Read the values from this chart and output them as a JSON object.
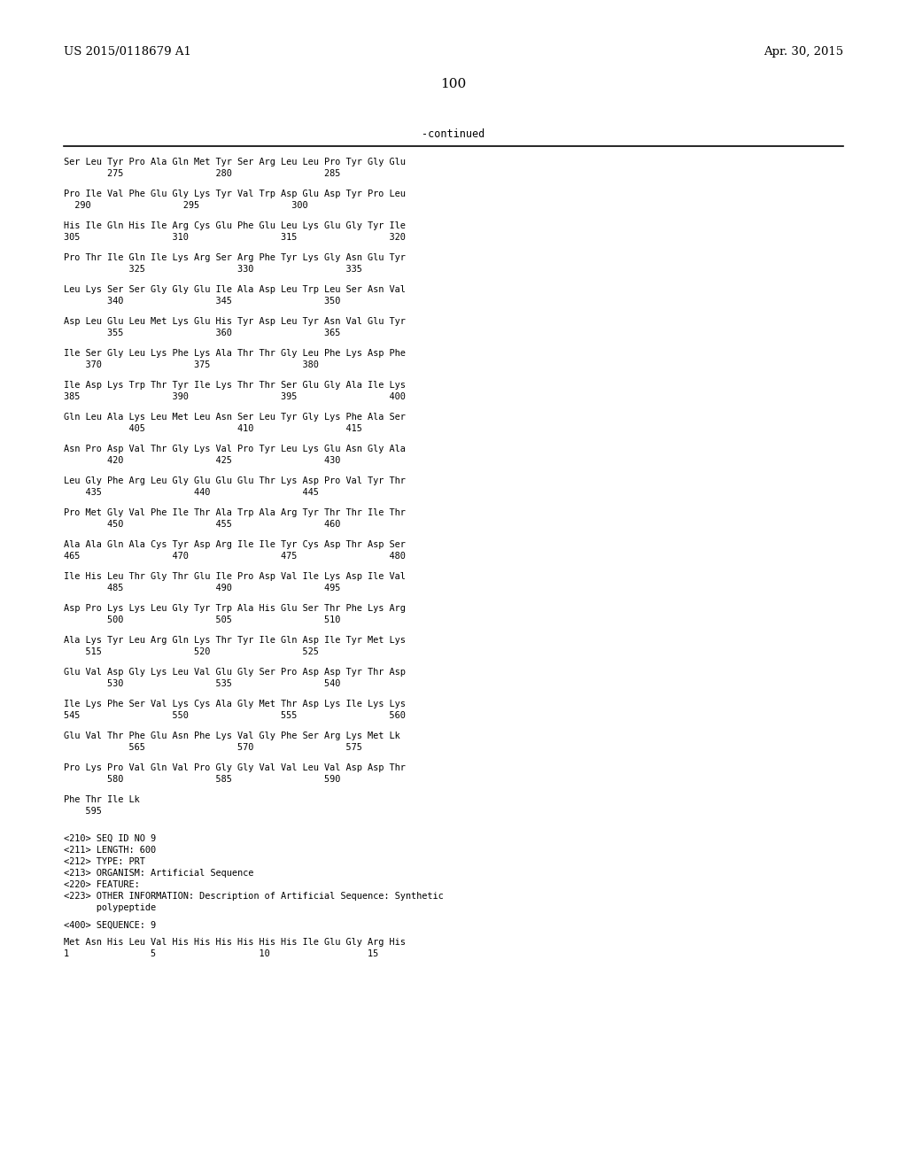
{
  "header_left": "US 2015/0118679 A1",
  "header_right": "Apr. 30, 2015",
  "page_number": "100",
  "continued_text": "-continued",
  "background_color": "#ffffff",
  "text_color": "#000000",
  "content_lines": [
    [
      "Ser Leu Tyr Pro Ala Gln Met Tyr Ser Arg Leu Leu Pro Tyr Gly Glu",
      "        275                 280                 285"
    ],
    [
      "Pro Ile Val Phe Glu Gly Lys Tyr Val Trp Asp Glu Asp Tyr Pro Leu",
      "  290                 295                 300"
    ],
    [
      "His Ile Gln His Ile Arg Cys Glu Phe Glu Leu Lys Glu Gly Tyr Ile",
      "305                 310                 315                 320"
    ],
    [
      "Pro Thr Ile Gln Ile Lys Arg Ser Arg Phe Tyr Lys Gly Asn Glu Tyr",
      "            325                 330                 335"
    ],
    [
      "Leu Lys Ser Ser Gly Gly Glu Ile Ala Asp Leu Trp Leu Ser Asn Val",
      "        340                 345                 350"
    ],
    [
      "Asp Leu Glu Leu Met Lys Glu His Tyr Asp Leu Tyr Asn Val Glu Tyr",
      "        355                 360                 365"
    ],
    [
      "Ile Ser Gly Leu Lys Phe Lys Ala Thr Thr Gly Leu Phe Lys Asp Phe",
      "    370                 375                 380"
    ],
    [
      "Ile Asp Lys Trp Thr Tyr Ile Lys Thr Thr Ser Glu Gly Ala Ile Lys",
      "385                 390                 395                 400"
    ],
    [
      "Gln Leu Ala Lys Leu Met Leu Asn Ser Leu Tyr Gly Lys Phe Ala Ser",
      "            405                 410                 415"
    ],
    [
      "Asn Pro Asp Val Thr Gly Lys Val Pro Tyr Leu Lys Glu Asn Gly Ala",
      "        420                 425                 430"
    ],
    [
      "Leu Gly Phe Arg Leu Gly Glu Glu Glu Thr Lys Asp Pro Val Tyr Thr",
      "    435                 440                 445"
    ],
    [
      "Pro Met Gly Val Phe Ile Thr Ala Trp Ala Arg Tyr Thr Thr Ile Thr",
      "        450                 455                 460"
    ],
    [
      "Ala Ala Gln Ala Cys Tyr Asp Arg Ile Ile Tyr Cys Asp Thr Asp Ser",
      "465                 470                 475                 480"
    ],
    [
      "Ile His Leu Thr Gly Thr Glu Ile Pro Asp Val Ile Lys Asp Ile Val",
      "        485                 490                 495"
    ],
    [
      "Asp Pro Lys Lys Leu Gly Tyr Trp Ala His Glu Ser Thr Phe Lys Arg",
      "        500                 505                 510"
    ],
    [
      "Ala Lys Tyr Leu Arg Gln Lys Thr Tyr Ile Gln Asp Ile Tyr Met Lys",
      "    515                 520                 525"
    ],
    [
      "Glu Val Asp Gly Lys Leu Val Glu Gly Ser Pro Asp Asp Tyr Thr Asp",
      "        530                 535                 540"
    ],
    [
      "Ile Lys Phe Ser Val Lys Cys Ala Gly Met Thr Asp Lys Ile Lys Lys",
      "545                 550                 555                 560"
    ],
    [
      "Glu Val Thr Phe Glu Asn Phe Lys Val Gly Phe Ser Arg Lys Met Lk",
      "            565                 570                 575"
    ],
    [
      "Pro Lys Pro Val Gln Val Pro Gly Gly Val Val Leu Val Asp Asp Thr",
      "        580                 585                 590"
    ],
    [
      "Phe Thr Ile Lk",
      "    595"
    ]
  ],
  "metadata_lines": [
    "<210> SEQ ID NO 9",
    "<211> LENGTH: 600",
    "<212> TYPE: PRT",
    "<213> ORGANISM: Artificial Sequence",
    "<220> FEATURE:",
    "<223> OTHER INFORMATION: Description of Artificial Sequence: Synthetic",
    "      polypeptide"
  ],
  "sequence_header": "<400> SEQUENCE: 9",
  "seq_lines": [
    "Met Asn His Leu Val His His His His His His Ile Glu Gly Arg His",
    "1               5                   10                  15"
  ]
}
